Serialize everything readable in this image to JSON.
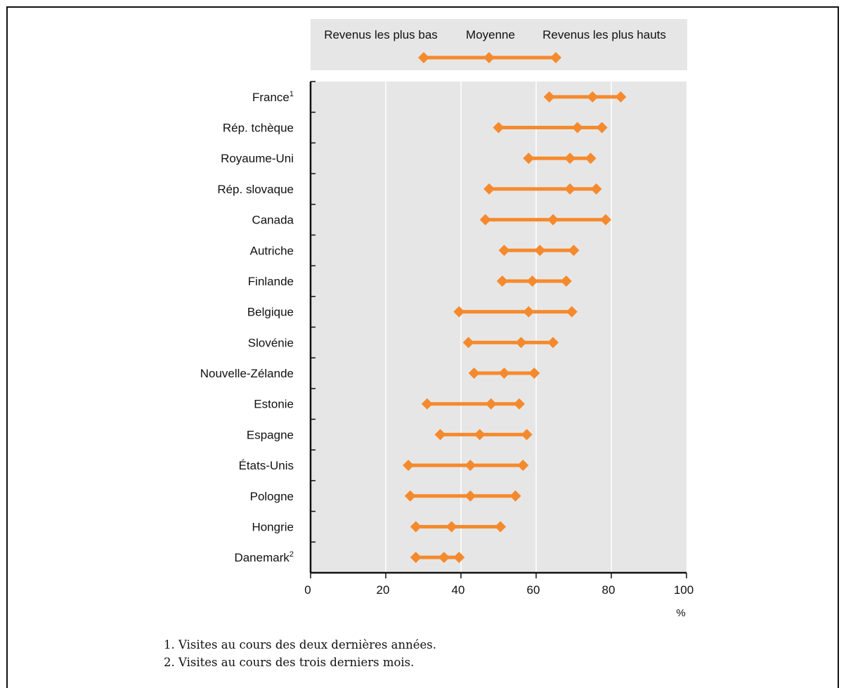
{
  "chart_data": {
    "type": "dot-range",
    "legend": {
      "labels": [
        "Revenus les plus bas",
        "Moyenne",
        "Revenus les plus hauts"
      ],
      "placement": "top"
    },
    "categories": [
      {
        "name": "France",
        "sup": "1"
      },
      {
        "name": "Rép. tchèque",
        "sup": ""
      },
      {
        "name": "Royaume-Uni",
        "sup": ""
      },
      {
        "name": "Rép. slovaque",
        "sup": ""
      },
      {
        "name": "Canada",
        "sup": ""
      },
      {
        "name": "Autriche",
        "sup": ""
      },
      {
        "name": "Finlande",
        "sup": ""
      },
      {
        "name": "Belgique",
        "sup": ""
      },
      {
        "name": "Slovénie",
        "sup": ""
      },
      {
        "name": "Nouvelle-Zélande",
        "sup": ""
      },
      {
        "name": "Estonie",
        "sup": ""
      },
      {
        "name": "Espagne",
        "sup": ""
      },
      {
        "name": "États-Unis",
        "sup": ""
      },
      {
        "name": "Pologne",
        "sup": ""
      },
      {
        "name": "Hongrie",
        "sup": ""
      },
      {
        "name": "Danemark",
        "sup": "2"
      }
    ],
    "series": [
      {
        "name": "Revenus les plus bas",
        "values": [
          63.5,
          50,
          58,
          47.5,
          46.5,
          51.5,
          51,
          39.5,
          42,
          43.5,
          31,
          34.5,
          26,
          26.5,
          28,
          28
        ]
      },
      {
        "name": "Moyenne",
        "values": [
          75,
          71,
          69,
          69,
          64.5,
          61,
          59,
          58,
          56,
          51.5,
          48,
          45,
          42.5,
          42.5,
          37.5,
          35.5
        ]
      },
      {
        "name": "Revenus les plus hauts",
        "values": [
          82.5,
          77.5,
          74.5,
          76,
          78.5,
          70,
          68,
          69.5,
          64.5,
          59.5,
          55.5,
          57.5,
          56.5,
          54.5,
          50.5,
          39.5
        ]
      }
    ],
    "xlim": [
      0,
      100
    ],
    "xticks": [
      "0",
      "20",
      "40",
      "60",
      "80",
      "100"
    ],
    "xunit": "%",
    "grid": true,
    "colors": {
      "marker": "#f58a2d",
      "plot_bg": "#e6e6e6",
      "legend_bg": "#e6e6e6",
      "gridline": "#ffffff",
      "axis": "#111111"
    }
  },
  "footnotes": [
    "1.  Visites au cours des deux dernières années.",
    "2.  Visites au cours des trois derniers mois."
  ]
}
